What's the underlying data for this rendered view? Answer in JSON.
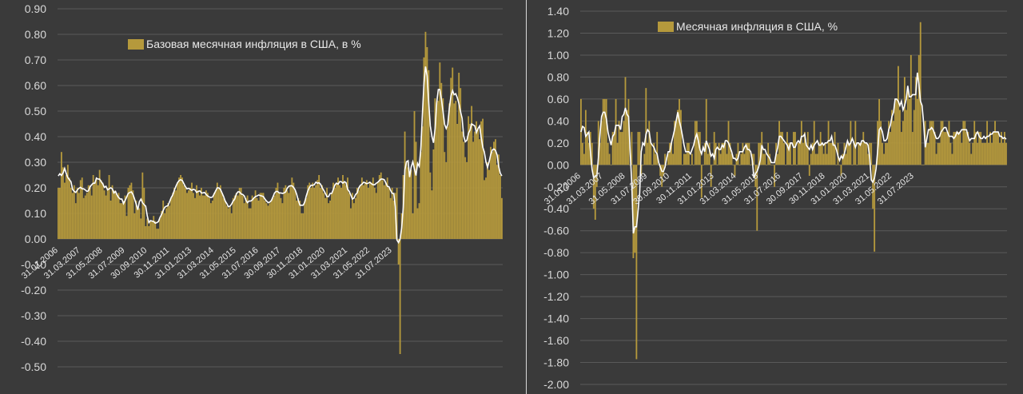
{
  "colors": {
    "background": "#3a3a3a",
    "bar": "#b5993c",
    "line": "#ffffff",
    "grid": "#5a5a5a",
    "text": "#d8d8d8"
  },
  "chart_data": [
    {
      "type": "bar",
      "legend": "Базовая месячная инфляция в США, в %",
      "legend_position": "top-center",
      "ylim": [
        -0.5,
        0.9
      ],
      "y_ticks": [
        "0.90",
        "0.80",
        "0.70",
        "0.60",
        "0.50",
        "0.40",
        "0.30",
        "0.20",
        "0.10",
        "0.00",
        "-0.10",
        "-0.20",
        "-0.30",
        "-0.40",
        "-0.50"
      ],
      "x_ticks": [
        "31.01.2006",
        "31.03.2007",
        "31.05.2008",
        "31.07.2009",
        "30.09.2010",
        "30.11.2011",
        "31.01.2013",
        "31.03.2014",
        "31.05.2015",
        "31.07.2016",
        "30.09.2017",
        "30.11.2018",
        "31.01.2020",
        "31.03.2021",
        "31.05.2022",
        "31.07.2023"
      ],
      "grid": true,
      "x_start": "2006-01",
      "values": [
        0.2,
        0.2,
        0.34,
        0.28,
        0.22,
        0.25,
        0.29,
        0.24,
        0.2,
        0.18,
        0.21,
        0.14,
        0.2,
        0.18,
        0.23,
        0.24,
        0.16,
        0.17,
        0.18,
        0.21,
        0.21,
        0.17,
        0.25,
        0.22,
        0.24,
        0.21,
        0.27,
        0.23,
        0.22,
        0.19,
        0.17,
        0.2,
        0.25,
        0.15,
        0.21,
        0.19,
        0.18,
        0.17,
        0.18,
        0.14,
        0.14,
        0.15,
        0.17,
        0.09,
        0.2,
        0.21,
        0.22,
        0.19,
        0.1,
        0.15,
        0.12,
        0.12,
        0.08,
        0.26,
        0.2,
        0.05,
        0.08,
        0.05,
        0.07,
        0.07,
        0.09,
        0.07,
        0.04,
        0.04,
        0.08,
        0.11,
        0.15,
        0.1,
        0.12,
        0.14,
        0.13,
        0.16,
        0.18,
        0.2,
        0.19,
        0.22,
        0.24,
        0.25,
        0.24,
        0.21,
        0.2,
        0.18,
        0.19,
        0.2,
        0.22,
        0.18,
        0.16,
        0.21,
        0.19,
        0.17,
        0.2,
        0.17,
        0.17,
        0.19,
        0.18,
        0.16,
        0.14,
        0.15,
        0.18,
        0.19,
        0.22,
        0.2,
        0.21,
        0.18,
        0.16,
        0.15,
        0.13,
        0.12,
        0.13,
        0.1,
        0.16,
        0.17,
        0.18,
        0.17,
        0.2,
        0.2,
        0.17,
        0.14,
        0.16,
        0.17,
        0.12,
        0.12,
        0.17,
        0.16,
        0.19,
        0.16,
        0.15,
        0.18,
        0.18,
        0.18,
        0.15,
        0.14,
        0.13,
        0.14,
        0.15,
        0.16,
        0.17,
        0.2,
        0.22,
        0.18,
        0.16,
        0.14,
        0.2,
        0.21,
        0.19,
        0.18,
        0.21,
        0.24,
        0.22,
        0.19,
        0.15,
        0.16,
        0.15,
        0.1,
        0.1,
        0.15,
        0.16,
        0.21,
        0.22,
        0.2,
        0.22,
        0.2,
        0.21,
        0.23,
        0.25,
        0.2,
        0.21,
        0.18,
        0.16,
        0.2,
        0.14,
        0.15,
        0.18,
        0.22,
        0.2,
        0.22,
        0.24,
        0.21,
        0.2,
        0.25,
        0.22,
        0.21,
        0.24,
        0.18,
        0.12,
        0.18,
        0.14,
        0.16,
        0.2,
        0.19,
        0.21,
        0.24,
        0.21,
        0.22,
        0.23,
        0.2,
        0.22,
        0.22,
        0.24,
        0.2,
        0.18,
        0.22,
        0.25,
        0.26,
        0.23,
        0.21,
        0.22,
        0.24,
        0.2,
        0.16,
        0.2,
        0.15,
        0.18,
        0.2,
        -0.1,
        -0.45,
        0.1,
        0.25,
        0.42,
        0.3,
        0.28,
        0.26,
        0.27,
        0.1,
        0.5,
        0.38,
        0.12,
        0.14,
        0.34,
        0.44,
        0.71,
        0.81,
        0.75,
        0.66,
        0.26,
        0.19,
        0.35,
        0.55,
        0.53,
        0.54,
        0.69,
        0.61,
        0.55,
        0.34,
        0.3,
        0.44,
        0.53,
        0.63,
        0.67,
        0.53,
        0.54,
        0.45,
        0.65,
        0.59,
        0.42,
        0.38,
        0.32,
        0.3,
        0.48,
        0.45,
        0.52,
        0.38,
        0.42,
        0.46,
        0.43,
        0.39,
        0.46,
        0.47,
        0.23,
        0.24,
        0.3,
        0.27,
        0.36,
        0.34,
        0.38,
        0.39,
        0.29,
        0.33,
        0.25,
        0.16
      ]
    },
    {
      "type": "bar",
      "legend": "Месячная инфляция в США, %",
      "legend_position": "top-center",
      "ylim": [
        -2.0,
        1.4
      ],
      "y_ticks": [
        "1.40",
        "1.20",
        "1.00",
        "0.80",
        "0.60",
        "0.40",
        "0.20",
        "0.00",
        "-0.20",
        "-0.40",
        "-0.60",
        "-0.80",
        "-1.00",
        "-1.20",
        "-1.40",
        "-1.60",
        "-1.80",
        "-2.00"
      ],
      "x_ticks": [
        "31.01.2006",
        "31.03.2007",
        "31.05.2008",
        "31.07.2009",
        "30.09.2010",
        "30.11.2011",
        "31.01.2013",
        "31.03.2014",
        "31.05.2015",
        "31.07.2016",
        "30.09.2017",
        "30.11.2018",
        "31.01.2020",
        "31.03.2021",
        "31.05.2022",
        "31.07.2023"
      ],
      "grid": true,
      "x_start": "2006-01",
      "values": [
        0.6,
        0.2,
        0.1,
        0.5,
        0.3,
        0.2,
        0.3,
        0.2,
        -0.4,
        -0.5,
        -0.2,
        0.4,
        0.2,
        0.4,
        0.6,
        0.6,
        0.6,
        0.2,
        0.1,
        0.0,
        0.3,
        0.3,
        0.6,
        0.2,
        0.4,
        0.3,
        0.3,
        0.4,
        0.8,
        0.5,
        0.6,
        0.0,
        0.3,
        -0.85,
        -0.8,
        -1.77,
        0.3,
        0.3,
        -0.1,
        0.0,
        0.1,
        0.7,
        0.2,
        0.4,
        0.2,
        0.0,
        0.2,
        0.1,
        0.3,
        0.0,
        -0.1,
        -0.2,
        -0.1,
        0.1,
        0.0,
        0.1,
        0.2,
        0.2,
        0.1,
        0.4,
        0.4,
        0.5,
        0.6,
        0.5,
        0.0,
        0.1,
        0.1,
        0.2,
        0.2,
        0.0,
        0.1,
        0.0,
        0.4,
        0.4,
        0.3,
        0.3,
        -0.3,
        0.0,
        0.2,
        0.6,
        0.1,
        0.2,
        -0.2,
        0.0,
        0.3,
        0.2,
        0.0,
        0.2,
        0.1,
        0.2,
        0.2,
        0.2,
        0.1,
        0.4,
        0.2,
        0.1,
        0.0,
        -0.1,
        0.1,
        0.2,
        0.0,
        0.1,
        0.2,
        0.1,
        0.2,
        0.2,
        0.2,
        0.0,
        0.1,
        0.1,
        -0.2,
        -0.6,
        0.2,
        0.2,
        0.3,
        0.1,
        0.1,
        0.0,
        0.2,
        0.1,
        0.0,
        0.0,
        -0.2,
        0.2,
        0.1,
        0.4,
        0.3,
        0.3,
        0.2,
        0.0,
        0.3,
        0.2,
        0.2,
        0.0,
        0.3,
        0.3,
        0.0,
        0.2,
        0.2,
        0.4,
        0.2,
        0.3,
        0.2,
        0.3,
        -0.1,
        0.1,
        0.2,
        0.4,
        0.1,
        0.1,
        0.2,
        0.3,
        0.2,
        0.1,
        0.2,
        0.1,
        0.4,
        0.2,
        0.2,
        0.2,
        0.3,
        0.0,
        0.2,
        0.0,
        -0.1,
        0.1,
        0.2,
        0.1,
        0.2,
        0.2,
        0.4,
        0.0,
        0.2,
        0.4,
        0.0,
        0.2,
        0.2,
        0.2,
        0.3,
        0.2,
        0.2,
        0.1,
        0.2,
        0.2,
        -0.4,
        -0.79,
        0.0,
        0.4,
        0.6,
        0.4,
        0.2,
        0.1,
        0.2,
        0.2,
        0.4,
        0.3,
        0.5,
        0.4,
        0.6,
        0.6,
        0.9,
        0.5,
        0.3,
        0.4,
        0.8,
        0.5,
        0.7,
        0.6,
        1.0,
        0.3,
        0.5,
        0.8,
        0.6,
        1.0,
        1.3,
        0.0,
        0.0,
        0.4,
        0.2,
        0.2,
        0.4,
        0.4,
        0.4,
        0.3,
        0.1,
        0.2,
        0.2,
        0.4,
        0.4,
        0.3,
        0.3,
        0.3,
        0.4,
        0.2,
        0.1,
        0.3,
        0.3,
        0.3,
        0.3,
        0.3,
        0.2,
        0.4,
        0.4,
        0.3,
        0.3,
        0.2,
        0.1,
        0.2,
        0.4,
        0.3,
        0.2,
        0.3,
        0.3,
        0.2,
        0.2,
        0.2,
        0.4,
        0.2,
        0.3,
        0.2,
        0.3,
        0.4,
        0.3,
        0.3,
        0.2,
        0.3,
        0.2,
        0.3,
        0.2
      ]
    }
  ]
}
